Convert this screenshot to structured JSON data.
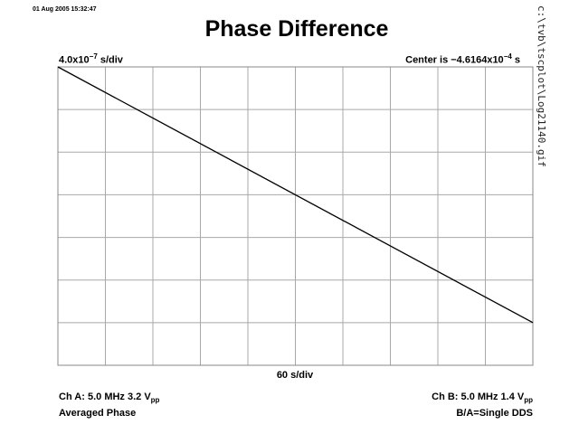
{
  "header": {
    "timestamp": "01 Aug 2005 15:32:47",
    "file_path": "c:\\tvb\\tscplot\\Log21140.gif"
  },
  "chart_data": {
    "type": "line",
    "title": "Phase Difference",
    "y_scale": {
      "prefix": "4.0x10",
      "exp": "−7",
      "suffix": " s/div"
    },
    "center": {
      "prefix": "Center is −4.6164x10",
      "exp": "−4",
      "suffix": " s"
    },
    "xlabel": "60 s/div",
    "x_divisions": 10,
    "y_divisions": 7,
    "grid": true,
    "xlim": [
      0,
      10
    ],
    "ylim": [
      0,
      7
    ],
    "series": [
      {
        "x": [
          0,
          10
        ],
        "y": [
          7.0,
          1.0
        ]
      }
    ]
  },
  "footer": {
    "ch_a": {
      "text": "Ch A: 5.0 MHz 3.2 V",
      "sub": "pp"
    },
    "ch_a_mode": "Averaged Phase",
    "ch_b": {
      "text": "Ch B: 5.0 MHz 1.4 V",
      "sub": "pp"
    },
    "ba_mode": "B/A=Single DDS"
  }
}
